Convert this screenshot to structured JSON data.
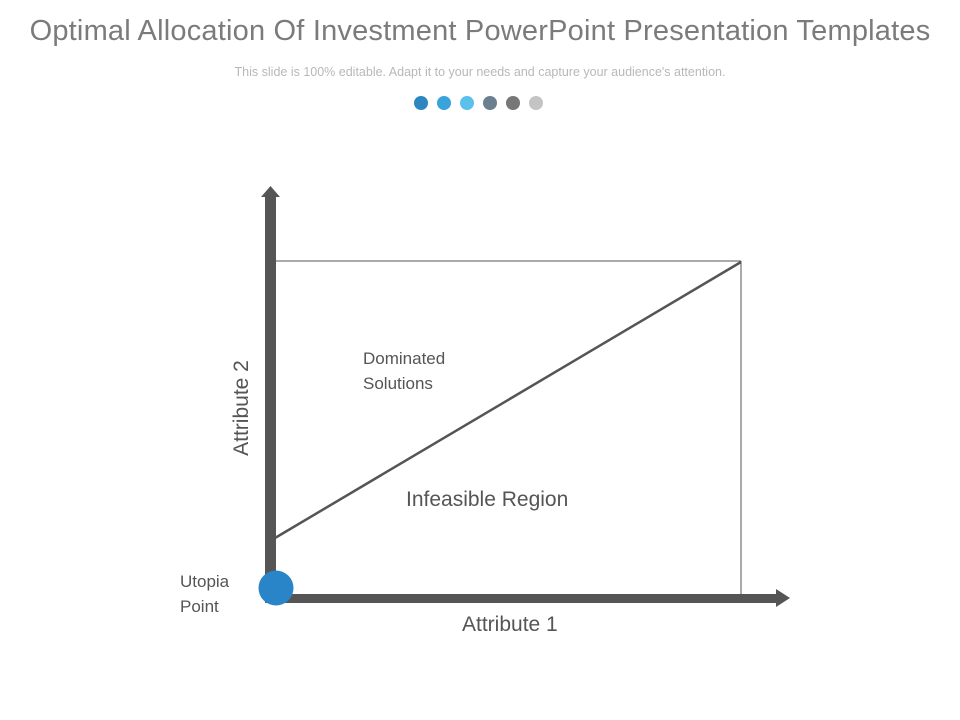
{
  "header": {
    "title": "Optimal Allocation Of Investment PowerPoint Presentation Templates",
    "subtitle": "This slide is 100% editable. Adapt it to your needs and capture your audience's attention."
  },
  "dots": [
    {
      "color": "#2e86c1"
    },
    {
      "color": "#3aa3dc"
    },
    {
      "color": "#5bc0eb"
    },
    {
      "color": "#6b7f8e"
    },
    {
      "color": "#777777"
    },
    {
      "color": "#c4c4c4"
    }
  ],
  "diagram": {
    "labels": {
      "dominated_solutions": "Dominated Solutions",
      "infeasible_region": "Infeasible Region",
      "utopia_point": "Utopia Point",
      "x_axis": "Attribute 1",
      "y_axis": "Attribute 2"
    },
    "colors": {
      "axis": "#555555",
      "utopia_marker": "#2a85c8",
      "frame": "#555555"
    }
  }
}
